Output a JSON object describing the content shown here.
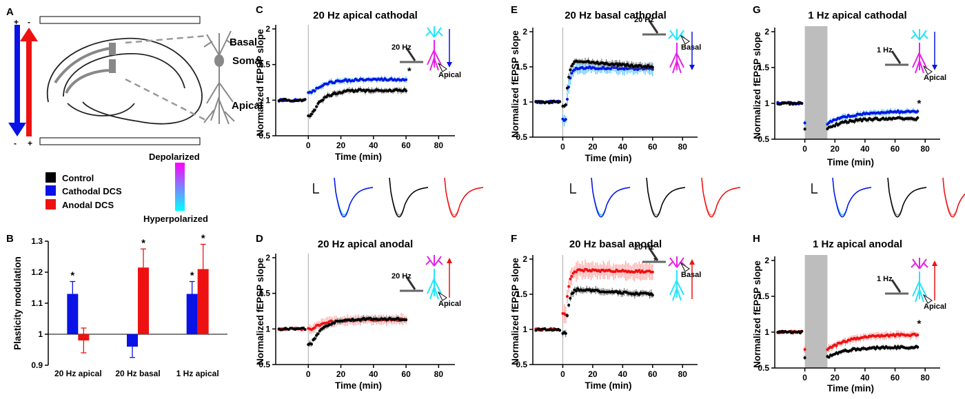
{
  "panels": {
    "A": {
      "letter": "A",
      "basal": "Basal",
      "soma": "Soma",
      "apical": "Apical",
      "plus": "+",
      "minus": "-"
    },
    "legend": {
      "items": [
        {
          "label": "Control",
          "color": "#000000"
        },
        {
          "label": "Cathodal DCS",
          "color": "#0a12e6"
        },
        {
          "label": "Anodal DCS",
          "color": "#ee1111"
        }
      ],
      "gradient_top": "Depolarized",
      "gradient_bottom": "Hyperpolarized",
      "gradient_colors": [
        "#ff00ff",
        "#00ffff"
      ]
    },
    "inset_labels": {
      "hz20": "20 Hz",
      "hz1": "1 Hz",
      "apical": "Apical",
      "basal": "Basal"
    }
  },
  "colors": {
    "control": "#000000",
    "cathodal": "#0a12e6",
    "anodal": "#ee1111",
    "cathodal_light": "#22b8ff",
    "anodal_light": "#ff8a8a",
    "stim": "#bdbdbd"
  },
  "chart_data": [
    {
      "id": "B",
      "letter": "B",
      "type": "bar",
      "ylabel": "Plasticity modulation",
      "ylim": [
        0.9,
        1.3
      ],
      "yticks": [
        0.9,
        1,
        1.1,
        1.2,
        1.3
      ],
      "ytick_labels": [
        "0.9",
        "1",
        "1.1",
        "1.2",
        "1.3"
      ],
      "categories": [
        "20 Hz apical",
        "20 Hz basal",
        "1 Hz apical"
      ],
      "series": [
        {
          "key": "cathodal",
          "values": [
            1.13,
            0.96,
            1.13
          ],
          "errors": [
            0.04,
            0.035,
            0.04
          ],
          "sig": [
            "*",
            "",
            "*"
          ]
        },
        {
          "key": "anodal",
          "values": [
            0.98,
            1.215,
            1.21
          ],
          "errors": [
            0.04,
            0.06,
            0.08
          ],
          "sig": [
            "",
            "*",
            "*"
          ]
        }
      ]
    },
    {
      "id": "C",
      "letter": "C",
      "type": "line",
      "title": "20 Hz apical cathodal",
      "xlabel": "Time (min)",
      "ylabel": "Normalized fEPSP slope",
      "xlim": [
        -20,
        90
      ],
      "ylim": [
        0.5,
        2
      ],
      "xticks": [
        0,
        20,
        40,
        60,
        80
      ],
      "yticks": [
        0.5,
        1,
        1.5,
        2
      ],
      "ytick_labels": [
        "0.5",
        "1",
        "1.5",
        "2"
      ],
      "xtick_labels": [
        "0",
        "20",
        "40",
        "60",
        "80"
      ],
      "inset": {
        "hz": "hz20",
        "site": "apical",
        "arrow": "down",
        "basal_color": "cyan",
        "apical_color": "magenta"
      },
      "annotations": [
        {
          "text": "*",
          "x": 62,
          "y": 1.36
        }
      ],
      "series": [
        {
          "key": "control",
          "baseline": 1.0,
          "drop": 0.79,
          "level": 1.14,
          "tau": 7,
          "end": 60,
          "err": 0.04
        },
        {
          "key": "cathodal",
          "baseline": 1.0,
          "drop": 1.1,
          "level": 1.29,
          "tau": 8,
          "end": 60,
          "err": 0.04
        }
      ]
    },
    {
      "id": "D",
      "letter": "D",
      "type": "line",
      "title": "20 Hz apical anodal",
      "xlabel": "Time (min)",
      "ylabel": "Normalized fEPSP slope",
      "xlim": [
        -20,
        90
      ],
      "ylim": [
        0.5,
        2
      ],
      "xticks": [
        0,
        20,
        40,
        60,
        80
      ],
      "yticks": [
        0.5,
        1,
        1.5,
        2
      ],
      "ytick_labels": [
        "0.5",
        "1",
        "1.5",
        "2"
      ],
      "xtick_labels": [
        "0",
        "20",
        "40",
        "60",
        "80"
      ],
      "inset": {
        "hz": "hz20",
        "site": "apical",
        "arrow": "up",
        "basal_color": "magenta",
        "apical_color": "cyan"
      },
      "annotations": [],
      "series": [
        {
          "key": "control",
          "baseline": 1.0,
          "drop": 0.79,
          "level": 1.14,
          "tau": 7,
          "end": 60,
          "err": 0.04
        },
        {
          "key": "anodal",
          "baseline": 1.0,
          "drop": 1.0,
          "level": 1.13,
          "tau": 8,
          "end": 60,
          "err": 0.07
        }
      ]
    },
    {
      "id": "E",
      "letter": "E",
      "type": "line",
      "title": "20 Hz basal cathodal",
      "xlabel": "Time (min)",
      "ylabel": "Normalized fEPSP slope",
      "xlim": [
        -20,
        90
      ],
      "ylim": [
        0.5,
        2
      ],
      "xticks": [
        0,
        20,
        40,
        60,
        80
      ],
      "yticks": [
        0.5,
        1,
        1.5,
        2
      ],
      "ytick_labels": [
        "0.5",
        "1",
        "1.5",
        "2"
      ],
      "xtick_labels": [
        "0",
        "20",
        "40",
        "60",
        "80"
      ],
      "inset": {
        "hz": "hz20",
        "site": "basal",
        "arrow": "down",
        "basal_color": "cyan",
        "apical_color": "magenta"
      },
      "annotations": [],
      "series": [
        {
          "key": "control",
          "baseline": 1.0,
          "drop": 0.95,
          "peak": 1.62,
          "level": 1.47,
          "tau": 40,
          "end": 60,
          "err": 0.05
        },
        {
          "key": "cathodal",
          "baseline": 1.0,
          "drop": 0.75,
          "peak": 1.5,
          "level": 1.45,
          "tau": 60,
          "end": 60,
          "err": 0.08
        }
      ]
    },
    {
      "id": "F",
      "letter": "F",
      "type": "line",
      "title": "20 Hz basal anodal",
      "xlabel": "Time (min)",
      "ylabel": "Normalized fEPSP slope",
      "xlim": [
        -20,
        90
      ],
      "ylim": [
        0.5,
        2
      ],
      "xticks": [
        0,
        20,
        40,
        60,
        80
      ],
      "yticks": [
        0.5,
        1,
        1.5,
        2
      ],
      "ytick_labels": [
        "0.5",
        "1",
        "1.5",
        "2"
      ],
      "xtick_labels": [
        "0",
        "20",
        "40",
        "60",
        "80"
      ],
      "inset": {
        "hz": "hz20",
        "site": "basal",
        "arrow": "up",
        "basal_color": "magenta",
        "apical_color": "cyan"
      },
      "annotations": [
        {
          "text": "*",
          "x": 62,
          "y": 1.93
        }
      ],
      "series": [
        {
          "key": "control",
          "baseline": 1.0,
          "drop": 0.95,
          "peak": 1.6,
          "level": 1.47,
          "tau": 40,
          "end": 60,
          "err": 0.05
        },
        {
          "key": "anodal",
          "baseline": 1.0,
          "drop": 1.22,
          "peak": 1.85,
          "level": 1.8,
          "tau": 80,
          "end": 60,
          "err": 0.12
        }
      ]
    },
    {
      "id": "G",
      "letter": "G",
      "type": "line",
      "title": "1 Hz apical cathodal",
      "xlabel": "Time (min)",
      "ylabel": "Normalized fEPSP slope",
      "xlim": [
        -20,
        90
      ],
      "ylim": [
        0.5,
        2
      ],
      "xticks": [
        0,
        20,
        40,
        60,
        80
      ],
      "yticks": [
        0.5,
        1,
        1.5,
        2
      ],
      "ytick_labels": [
        "0.5",
        "1",
        "1.5",
        "2"
      ],
      "xtick_labels": [
        "0",
        "20",
        "40",
        "60",
        "80"
      ],
      "stim_window": [
        0,
        15
      ],
      "inset": {
        "hz": "hz1",
        "site": "apical",
        "arrow": "down",
        "basal_color": "cyan",
        "apical_color": "magenta"
      },
      "annotations": [
        {
          "text": "*",
          "x": 76,
          "y": 0.95
        }
      ],
      "series": [
        {
          "key": "control",
          "baseline": 1.0,
          "drop": 0.65,
          "level": 0.79,
          "tau": 12,
          "end": 75,
          "err": 0.03,
          "start": 15
        },
        {
          "key": "cathodal",
          "baseline": 1.0,
          "drop": 0.72,
          "level": 0.89,
          "tau": 15,
          "end": 75,
          "err": 0.04,
          "start": 15
        }
      ]
    },
    {
      "id": "H",
      "letter": "H",
      "type": "line",
      "title": "1 Hz apical anodal",
      "xlabel": "Time (min)",
      "ylabel": "Normalized fEPSP slope",
      "xlim": [
        -20,
        90
      ],
      "ylim": [
        0.5,
        2
      ],
      "xticks": [
        0,
        20,
        40,
        60,
        80
      ],
      "yticks": [
        0.5,
        1,
        1.5,
        2
      ],
      "ytick_labels": [
        "0.5",
        "1",
        "1.5",
        "2"
      ],
      "xtick_labels": [
        "0",
        "20",
        "40",
        "60",
        "80"
      ],
      "stim_window": [
        0,
        15
      ],
      "inset": {
        "hz": "hz1",
        "site": "apical",
        "arrow": "up",
        "basal_color": "magenta",
        "apical_color": "cyan"
      },
      "annotations": [
        {
          "text": "*",
          "x": 76,
          "y": 1.07
        }
      ],
      "series": [
        {
          "key": "control",
          "baseline": 1.0,
          "drop": 0.65,
          "level": 0.79,
          "tau": 12,
          "end": 75,
          "err": 0.03,
          "start": 15
        },
        {
          "key": "anodal",
          "baseline": 1.0,
          "drop": 0.75,
          "level": 0.97,
          "tau": 15,
          "end": 75,
          "err": 0.05,
          "start": 15
        }
      ]
    }
  ]
}
